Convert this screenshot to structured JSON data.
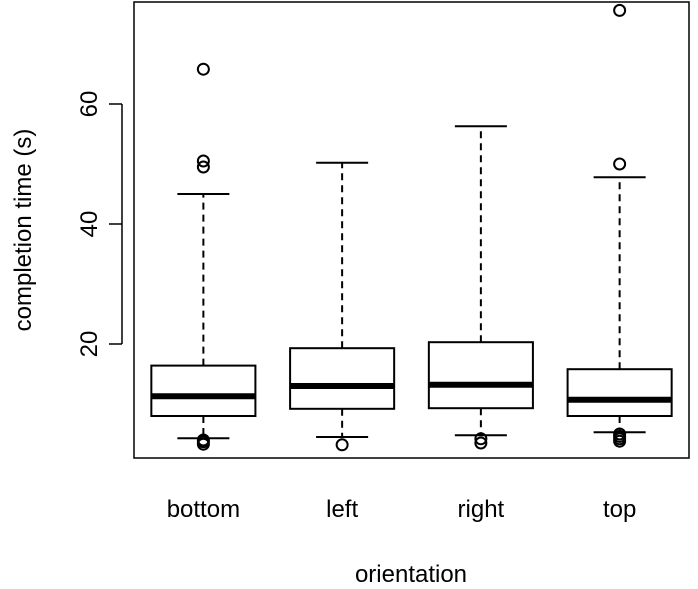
{
  "chart_data": {
    "type": "boxplot",
    "title": "",
    "xlabel": "orientation",
    "ylabel": "completion time (s)",
    "categories": [
      "bottom",
      "left",
      "right",
      "top"
    ],
    "ylim": [
      1,
      77
    ],
    "y_ticks": [
      20,
      40,
      60
    ],
    "y_tick_labels": [
      "20",
      "40",
      "60"
    ],
    "grid": false,
    "legend": "none",
    "boxes": [
      {
        "category": "bottom",
        "whisker_low": 4.3,
        "q1": 8.0,
        "median": 11.3,
        "q3": 16.4,
        "whisker_high": 45.0,
        "outliers": [
          3.3,
          3.7,
          4.0,
          49.5,
          50.5,
          65.8
        ]
      },
      {
        "category": "left",
        "whisker_low": 4.5,
        "q1": 9.2,
        "median": 13.0,
        "q3": 19.3,
        "whisker_high": 50.2,
        "outliers": [
          3.2
        ]
      },
      {
        "category": "right",
        "whisker_low": 4.8,
        "q1": 9.3,
        "median": 13.2,
        "q3": 20.3,
        "whisker_high": 56.3,
        "outliers": [
          3.5,
          4.2
        ]
      },
      {
        "category": "top",
        "whisker_low": 5.3,
        "q1": 8.0,
        "median": 10.7,
        "q3": 15.8,
        "whisker_high": 47.8,
        "outliers": [
          3.8,
          4.2,
          4.6,
          5.0,
          50.0,
          75.6
        ]
      }
    ]
  }
}
